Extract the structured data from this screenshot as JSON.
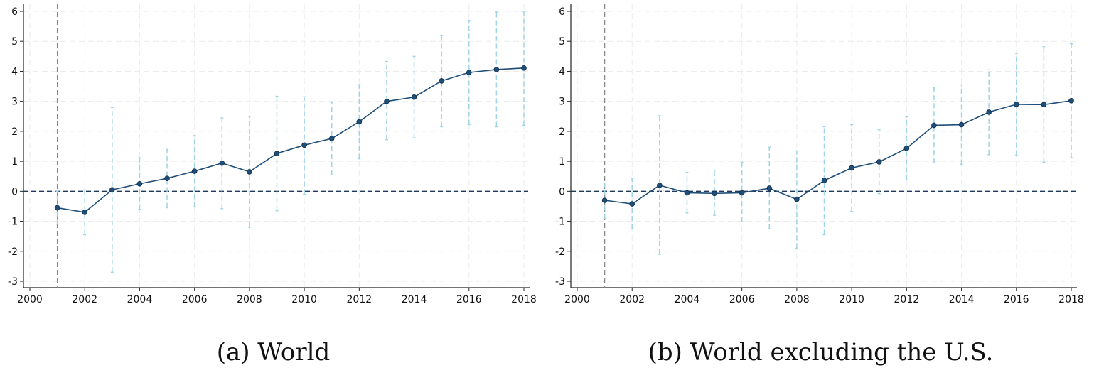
{
  "chart_data": [
    {
      "type": "line",
      "caption": "(a) World",
      "x": [
        2001,
        2002,
        2003,
        2004,
        2005,
        2006,
        2007,
        2008,
        2009,
        2010,
        2011,
        2012,
        2013,
        2014,
        2015,
        2016,
        2017,
        2018
      ],
      "series": [
        {
          "values": [
            -0.55,
            -0.7,
            0.05,
            0.25,
            0.43,
            0.67,
            0.94,
            0.65,
            1.26,
            1.54,
            1.76,
            2.32,
            3.0,
            3.14,
            3.68,
            3.96,
            4.06,
            4.11
          ],
          "ci_lower": [
            -1.1,
            -1.45,
            -2.7,
            -0.6,
            -0.55,
            -0.52,
            -0.58,
            -1.2,
            -0.65,
            -0.1,
            0.55,
            1.08,
            1.72,
            1.78,
            2.15,
            2.22,
            2.15,
            2.2
          ],
          "ci_upper": [
            0.0,
            0.05,
            2.8,
            1.12,
            1.4,
            1.86,
            2.45,
            2.5,
            3.17,
            3.15,
            2.97,
            3.56,
            4.33,
            4.5,
            5.2,
            5.7,
            5.98,
            6.0
          ]
        }
      ],
      "xlim": [
        2000,
        2018
      ],
      "ylim": [
        -3,
        6
      ],
      "xticks": [
        "2000",
        "2002",
        "2004",
        "2006",
        "2008",
        "2010",
        "2012",
        "2014",
        "2016",
        "2018"
      ],
      "yticks": [
        "6",
        "5",
        "4",
        "3",
        "2",
        "1",
        "0",
        "-1",
        "-2",
        "-3"
      ],
      "reference_x": 2001,
      "reference_y": 0,
      "grid": true
    },
    {
      "type": "line",
      "caption": "(b) World excluding the U.S.",
      "x": [
        2001,
        2002,
        2003,
        2004,
        2005,
        2006,
        2007,
        2008,
        2009,
        2010,
        2011,
        2012,
        2013,
        2014,
        2015,
        2016,
        2017,
        2018
      ],
      "series": [
        {
          "values": [
            -0.3,
            -0.42,
            0.2,
            -0.05,
            -0.07,
            -0.05,
            0.1,
            -0.27,
            0.36,
            0.78,
            0.98,
            1.43,
            2.2,
            2.22,
            2.64,
            2.9,
            2.89,
            3.02
          ],
          "ci_lower": [
            -0.9,
            -1.25,
            -2.1,
            -0.72,
            -0.8,
            -1.02,
            -1.25,
            -1.9,
            -1.45,
            -0.67,
            -0.08,
            0.38,
            0.95,
            0.9,
            1.22,
            1.2,
            0.97,
            1.12
          ],
          "ci_upper": [
            0.28,
            0.42,
            2.52,
            0.63,
            0.7,
            0.97,
            1.47,
            1.35,
            2.15,
            2.22,
            2.05,
            2.48,
            3.45,
            3.55,
            4.05,
            4.6,
            4.82,
            4.92
          ]
        }
      ],
      "xlim": [
        2000,
        2018
      ],
      "ylim": [
        -3,
        6
      ],
      "xticks": [
        "2000",
        "2002",
        "2004",
        "2006",
        "2008",
        "2010",
        "2012",
        "2014",
        "2016",
        "2018"
      ],
      "yticks": [
        "6",
        "5",
        "4",
        "3",
        "2",
        "1",
        "0",
        "-1",
        "-2",
        "-3"
      ],
      "reference_x": 2001,
      "reference_y": 0,
      "grid": true
    }
  ],
  "colors": {
    "line": "#1f4e79",
    "marker": "#1f4e79",
    "ci": "#9fd3e6",
    "reference_zero": "#1f3a5a",
    "reference_year": "#888888",
    "grid": "#ebebeb",
    "axis": "#222222"
  }
}
